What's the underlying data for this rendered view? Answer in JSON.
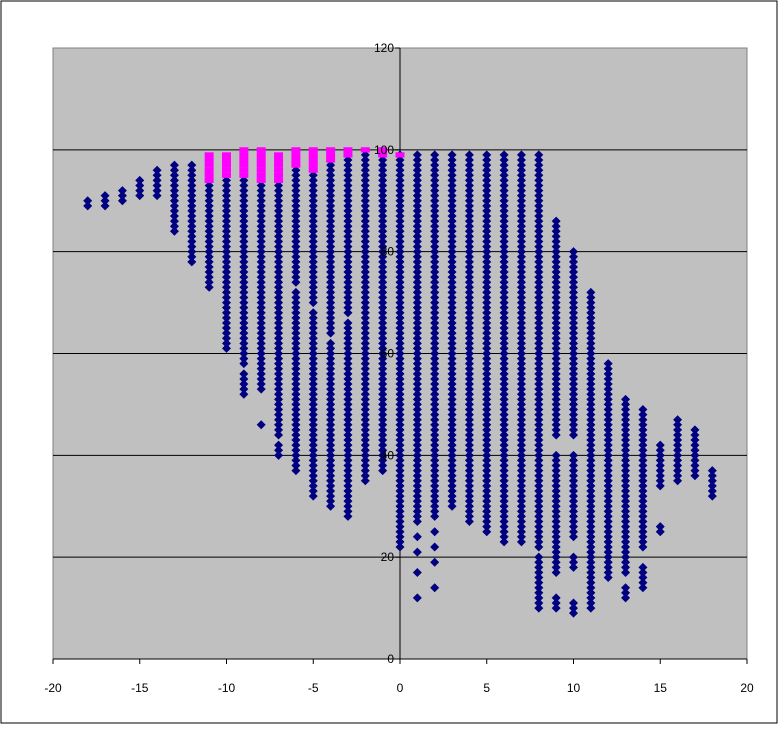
{
  "chart_data": {
    "type": "scatter",
    "title": "",
    "xlabel": "",
    "ylabel": "",
    "xlim": [
      -20,
      20
    ],
    "ylim": [
      0,
      120
    ],
    "xticks": [
      -20,
      -15,
      -10,
      -5,
      0,
      5,
      10,
      15,
      20
    ],
    "yticks": [
      0,
      20,
      40,
      60,
      80,
      100,
      120
    ],
    "x_tick_labels": [
      "-20",
      "-15",
      "-10",
      "-5",
      "0",
      "5",
      "10",
      "15",
      "20"
    ],
    "y_tick_labels": [
      "0",
      "20",
      "40",
      "60",
      "80",
      "100",
      "120"
    ],
    "grid": "horizontal",
    "legend": "none",
    "colors": {
      "plot_background": "#C0C0C0",
      "main_series": "#000080",
      "highlight_series": "#FF00FF",
      "gridline": "#000000"
    },
    "series": [
      {
        "marker": "diamond",
        "color": "#000080",
        "columns": [
          {
            "x": -18,
            "y": [
              89,
              90
            ]
          },
          {
            "x": -17,
            "y": [
              89,
              90,
              91
            ]
          },
          {
            "x": -16,
            "y": [
              90,
              91,
              92
            ]
          },
          {
            "x": -15,
            "y": [
              91,
              92,
              93,
              94
            ]
          },
          {
            "x": -14,
            "y": [
              [
                91,
                96
              ]
            ]
          },
          {
            "x": -13,
            "y": [
              [
                84,
                97
              ]
            ]
          },
          {
            "x": -12,
            "y": [
              [
                78,
                97
              ]
            ]
          },
          {
            "x": -11,
            "y": [
              [
                73,
                95
              ]
            ]
          },
          {
            "x": -10,
            "y": [
              [
                61,
                65
              ],
              [
                66,
                94
              ]
            ]
          },
          {
            "x": -9,
            "y": [
              [
                52,
                56
              ],
              [
                58,
                94
              ]
            ]
          },
          {
            "x": -8,
            "y": [
              46,
              [
                53,
                94
              ]
            ]
          },
          {
            "x": -7,
            "y": [
              [
                40,
                42
              ],
              [
                44,
                94
              ]
            ]
          },
          {
            "x": -6,
            "y": [
              [
                37,
                72
              ],
              [
                74,
                97
              ]
            ]
          },
          {
            "x": -5,
            "y": [
              [
                32,
                68
              ],
              [
                70,
                96
              ]
            ]
          },
          {
            "x": -4,
            "y": [
              [
                30,
                62
              ],
              [
                64,
                98
              ]
            ]
          },
          {
            "x": -3,
            "y": [
              [
                28,
                66
              ],
              [
                68,
                99
              ]
            ]
          },
          {
            "x": -2,
            "y": [
              [
                35,
                99
              ]
            ]
          },
          {
            "x": -1,
            "y": [
              [
                37,
                99
              ]
            ]
          },
          {
            "x": 0,
            "y": [
              [
                22,
                99
              ]
            ]
          },
          {
            "x": 1,
            "y": [
              12,
              17,
              21,
              24,
              [
                27,
                99
              ]
            ]
          },
          {
            "x": 2,
            "y": [
              14,
              19,
              22,
              25,
              [
                28,
                99
              ]
            ]
          },
          {
            "x": 3,
            "y": [
              [
                30,
                99
              ]
            ]
          },
          {
            "x": 4,
            "y": [
              [
                27,
                99
              ]
            ]
          },
          {
            "x": 5,
            "y": [
              [
                25,
                99
              ]
            ]
          },
          {
            "x": 6,
            "y": [
              [
                23,
                99
              ]
            ]
          },
          {
            "x": 7,
            "y": [
              [
                23,
                99
              ]
            ]
          },
          {
            "x": 8,
            "y": [
              [
                10,
                20
              ],
              [
                22,
                99
              ]
            ]
          },
          {
            "x": 9,
            "y": [
              10,
              11,
              12,
              [
                17,
                40
              ],
              [
                44,
                86
              ]
            ]
          },
          {
            "x": 10,
            "y": [
              9,
              10,
              11,
              18,
              19,
              20,
              [
                24,
                40
              ],
              [
                44,
                80
              ]
            ]
          },
          {
            "x": 11,
            "y": [
              [
                10,
                72
              ]
            ]
          },
          {
            "x": 12,
            "y": [
              [
                16,
                58
              ]
            ]
          },
          {
            "x": 13,
            "y": [
              [
                12,
                14
              ],
              [
                17,
                51
              ]
            ]
          },
          {
            "x": 14,
            "y": [
              [
                14,
                18
              ],
              [
                22,
                49
              ]
            ]
          },
          {
            "x": 15,
            "y": [
              25,
              26,
              [
                34,
                42
              ]
            ]
          },
          {
            "x": 16,
            "y": [
              [
                35,
                47
              ]
            ]
          },
          {
            "x": 17,
            "y": [
              [
                36,
                45
              ]
            ]
          },
          {
            "x": 18,
            "y": [
              [
                32,
                37
              ]
            ]
          }
        ]
      },
      {
        "marker": "square",
        "color": "#FF00FF",
        "columns": [
          {
            "x": -11,
            "y": [
              [
                94,
                99
              ]
            ]
          },
          {
            "x": -10,
            "y": [
              [
                95,
                99
              ]
            ]
          },
          {
            "x": -9,
            "y": [
              [
                95,
                100
              ]
            ]
          },
          {
            "x": -8,
            "y": [
              [
                94,
                100
              ]
            ]
          },
          {
            "x": -7,
            "y": [
              [
                94,
                99
              ]
            ]
          },
          {
            "x": -6,
            "y": [
              [
                97,
                100
              ]
            ]
          },
          {
            "x": -5,
            "y": [
              [
                96,
                100
              ]
            ]
          },
          {
            "x": -4,
            "y": [
              [
                98,
                100
              ]
            ]
          },
          {
            "x": -3,
            "y": [
              99,
              100
            ]
          },
          {
            "x": -2,
            "y": [
              100
            ]
          },
          {
            "x": -1,
            "y": [
              99,
              100
            ]
          },
          {
            "x": 0,
            "y": [
              99
            ]
          }
        ]
      }
    ]
  }
}
